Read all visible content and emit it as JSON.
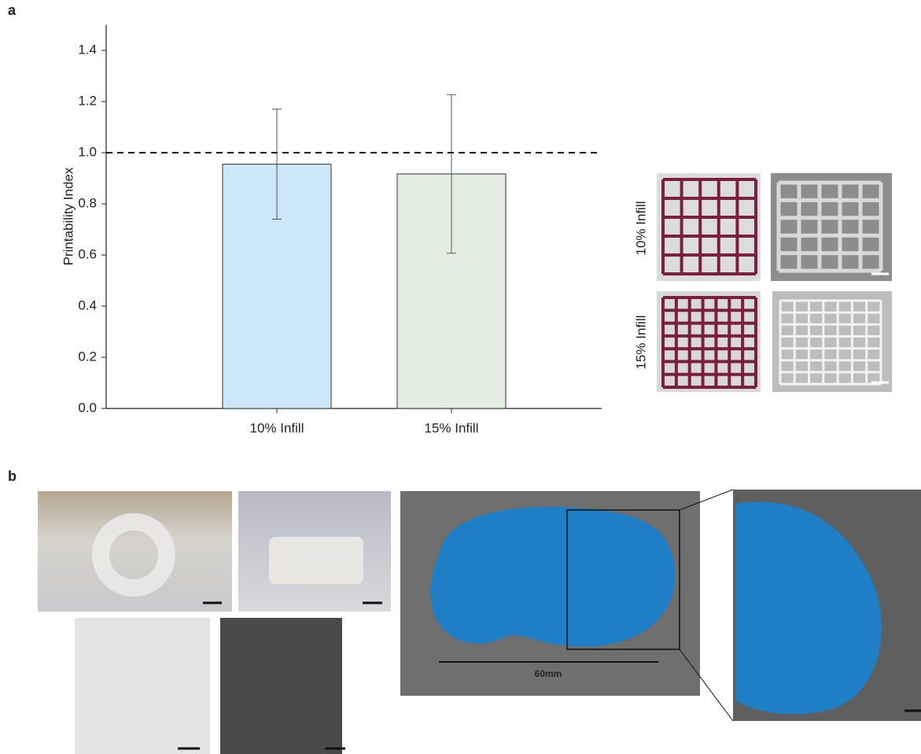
{
  "chart_data": {
    "type": "bar",
    "y_label": "Printability Index",
    "categories": [
      "10% Infill",
      "15% Infill"
    ],
    "values": [
      0.955,
      0.917
    ],
    "errors": [
      0.215,
      0.31
    ],
    "colors": [
      "#cce8f8",
      "#e2ecdf"
    ],
    "ylim": [
      0,
      1.5
    ],
    "yticks": [
      {
        "value": 0,
        "label": "0.0"
      },
      0.2,
      0.4,
      0.6,
      0.8,
      {
        "value": 1,
        "label": "1.0"
      },
      1.2,
      1.4
    ],
    "reference_line": 1
  },
  "figure": {
    "panel_a": "a",
    "panel_b": "b",
    "row_labels": [
      "10% Infill",
      "15% Infill"
    ],
    "scale_label": "60mm"
  }
}
